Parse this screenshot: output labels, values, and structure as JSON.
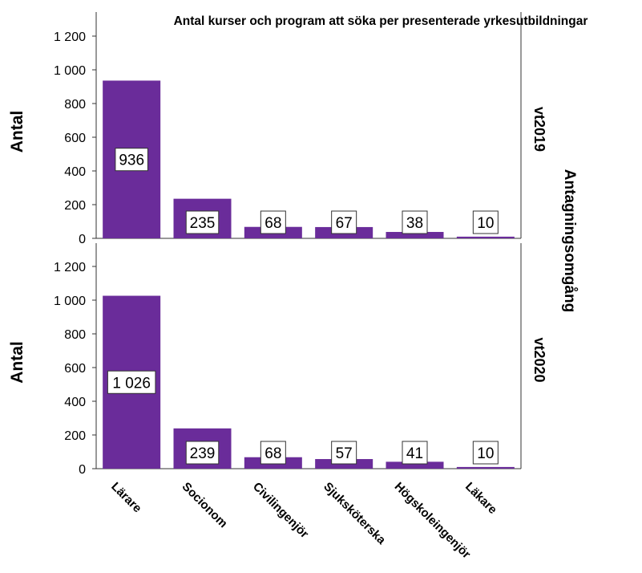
{
  "chart_data": {
    "type": "bar",
    "title": "Antal kurser och program att söka per presenterade yrkesutbildningar",
    "ylabel": "Antal",
    "facet_label": "Antagningsomgång",
    "categories": [
      "Lärare",
      "Socionom",
      "Civilingenjör",
      "Sjuksköterska",
      "Högskoleingenjör",
      "Läkare"
    ],
    "ylim": [
      0,
      1300
    ],
    "yticks": [
      0,
      200,
      400,
      600,
      800,
      1000,
      1200
    ],
    "ytick_labels": [
      "0",
      "200",
      "400",
      "600",
      "800",
      "1 000",
      "1 200"
    ],
    "bar_color": "#6a2c9a",
    "panels": [
      {
        "name": "vt2019",
        "values": [
          936,
          235,
          68,
          67,
          38,
          10
        ],
        "value_labels": [
          "936",
          "235",
          "68",
          "67",
          "38",
          "10"
        ]
      },
      {
        "name": "vt2020",
        "values": [
          1026,
          239,
          68,
          57,
          41,
          10
        ],
        "value_labels": [
          "1 026",
          "239",
          "68",
          "57",
          "41",
          "10"
        ]
      }
    ]
  }
}
